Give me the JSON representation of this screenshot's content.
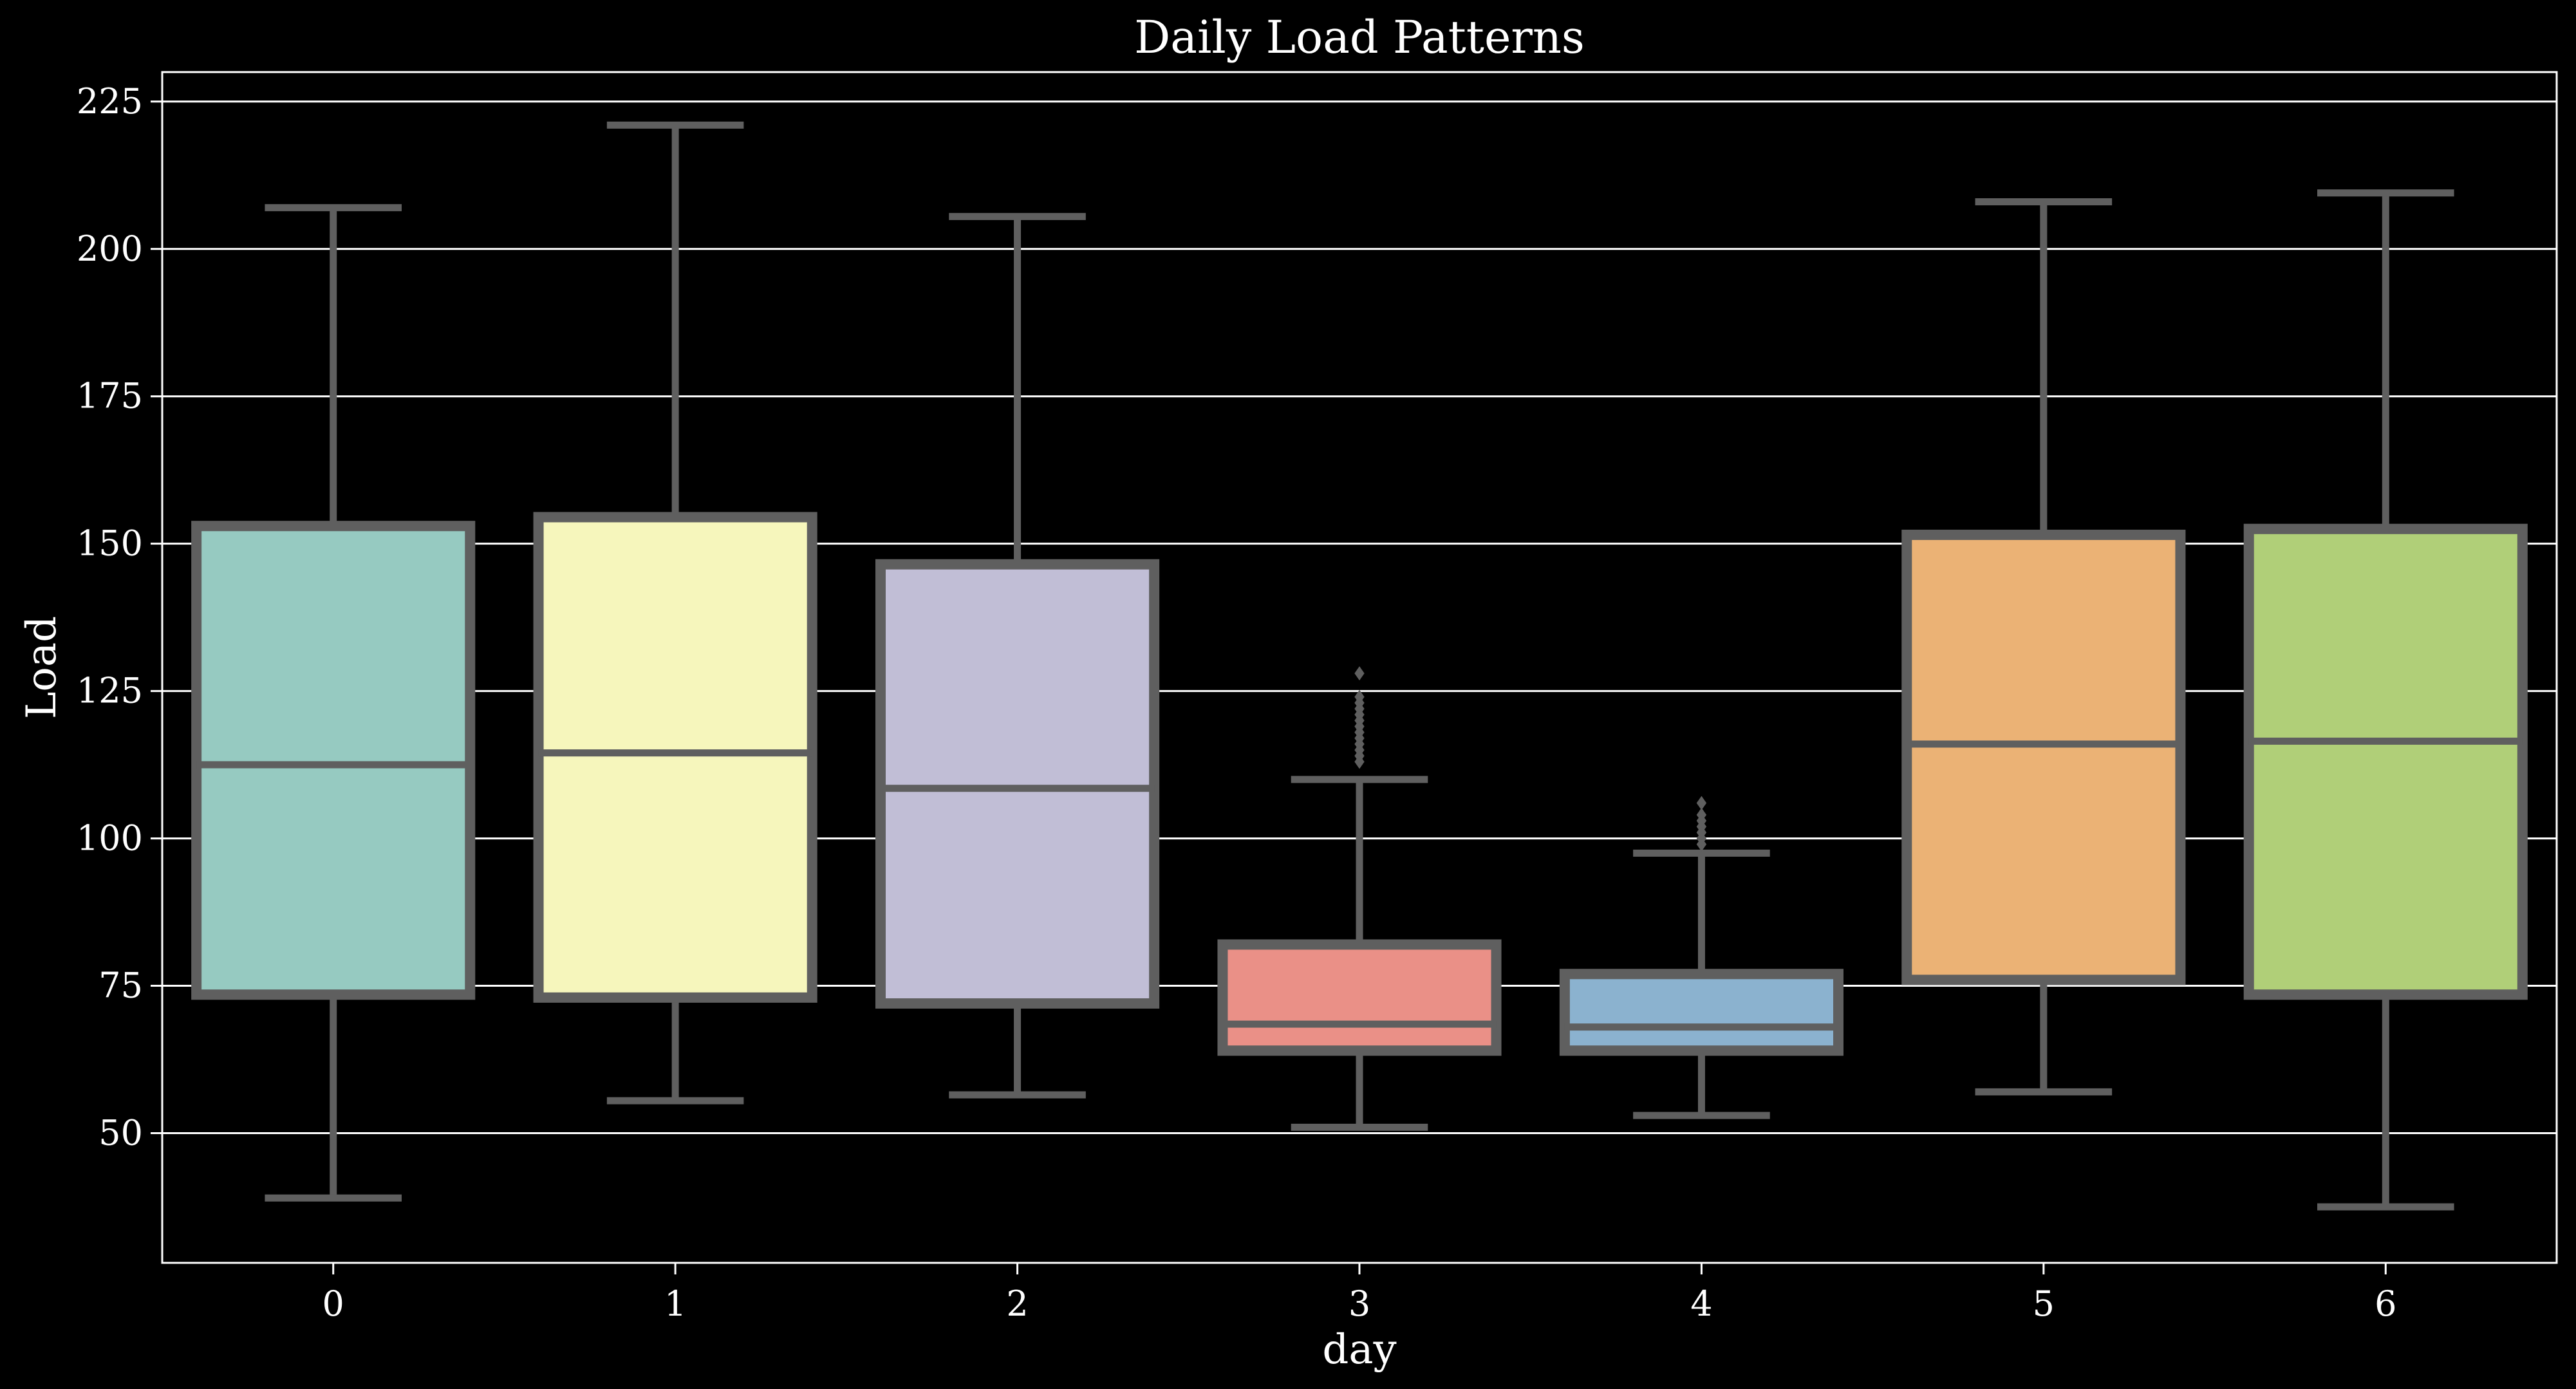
{
  "chart_data": {
    "type": "box",
    "title": "Daily Load Patterns",
    "xlabel": "day",
    "ylabel": "Load",
    "categories": [
      "0",
      "1",
      "2",
      "3",
      "4",
      "5",
      "6"
    ],
    "ylim": [
      28,
      230
    ],
    "yticks": [
      50,
      75,
      100,
      125,
      150,
      175,
      200,
      225
    ],
    "ytick_labels": [
      "50",
      "75",
      "100",
      "125",
      "150",
      "175",
      "200",
      "225"
    ],
    "grid": "horizontal",
    "background_color": "#000000",
    "text_color": "#ffffff",
    "grid_color": "#ffffff",
    "box_edge_color": "#5f5f5f",
    "boxes": [
      {
        "category": "0",
        "color": "#96cac1",
        "whislo": 39,
        "q1": 73.5,
        "median": 112.5,
        "q3": 153,
        "whishi": 207,
        "fliers": []
      },
      {
        "category": "1",
        "color": "#f6f6bc",
        "whislo": 55.5,
        "q1": 73,
        "median": 114.5,
        "q3": 154.5,
        "whishi": 221,
        "fliers": []
      },
      {
        "category": "2",
        "color": "#c1bed6",
        "whislo": 56.5,
        "q1": 72,
        "median": 108.5,
        "q3": 146.5,
        "whishi": 205.5,
        "fliers": []
      },
      {
        "category": "3",
        "color": "#ea9087",
        "whislo": 51,
        "q1": 64,
        "median": 68.5,
        "q3": 82,
        "whishi": 110,
        "fliers": [
          113,
          114,
          115,
          116,
          117,
          118,
          119,
          120,
          121,
          122,
          123,
          124,
          128
        ]
      },
      {
        "category": "4",
        "color": "#8bb2cf",
        "whislo": 53,
        "q1": 64,
        "median": 68,
        "q3": 77,
        "whishi": 97.5,
        "fliers": [
          99,
          100,
          101,
          102,
          103,
          104,
          106
        ]
      },
      {
        "category": "5",
        "color": "#ebb275",
        "whislo": 57,
        "q1": 76,
        "median": 116,
        "q3": 151.5,
        "whishi": 208,
        "fliers": []
      },
      {
        "category": "6",
        "color": "#b0cf78",
        "whislo": 37.5,
        "q1": 73.5,
        "median": 116.5,
        "q3": 152.5,
        "whishi": 209.5,
        "fliers": []
      }
    ]
  }
}
